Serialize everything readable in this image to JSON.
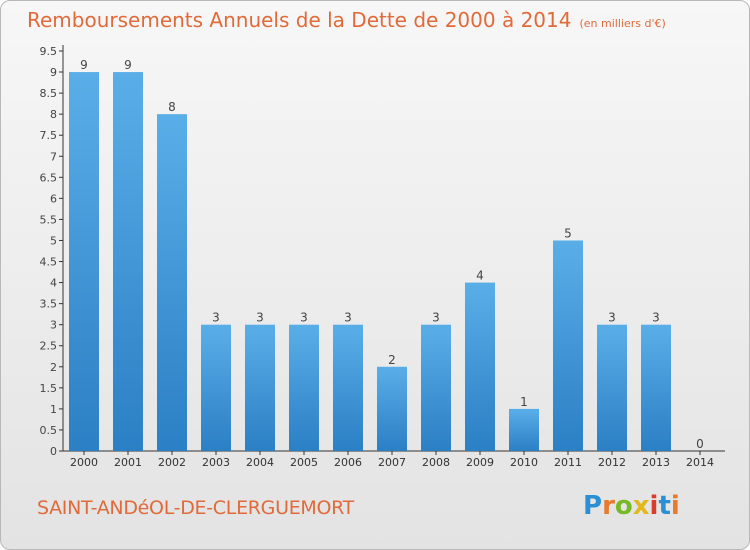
{
  "title": "Remboursements Annuels de la Dette de 2000 à 2014",
  "unit": "(en milliers d'€)",
  "commune": "SAINT-ANDéOL-DE-CLERGUEMORT",
  "logo": "Proxiti",
  "colors": {
    "title": "#e06a3a",
    "bar_light": "#5aaee8",
    "bar_dark": "#2b7fc4",
    "axis": "#333333"
  },
  "chart_data": {
    "type": "bar",
    "title": "Remboursements Annuels de la Dette de 2000 à 2014",
    "categories": [
      "2000",
      "2001",
      "2002",
      "2003",
      "2004",
      "2005",
      "2006",
      "2007",
      "2008",
      "2009",
      "2010",
      "2011",
      "2012",
      "2013",
      "2014"
    ],
    "values": [
      9,
      9,
      8,
      3,
      3,
      3,
      3,
      2,
      3,
      4,
      1,
      5,
      3,
      3,
      0
    ],
    "data_labels": [
      "9",
      "9",
      "8",
      "3",
      "3",
      "3",
      "3",
      "2",
      "3",
      "4",
      "1",
      "5",
      "3",
      "3",
      "0"
    ],
    "ylim": [
      0,
      9.5
    ],
    "yticks": [
      "0",
      "0.5",
      "1",
      "1.5",
      "2",
      "2.5",
      "3",
      "3.5",
      "4",
      "4.5",
      "5",
      "5.5",
      "6",
      "6.5",
      "7",
      "7.5",
      "8",
      "8.5",
      "9",
      "9.5"
    ],
    "grid": false
  }
}
